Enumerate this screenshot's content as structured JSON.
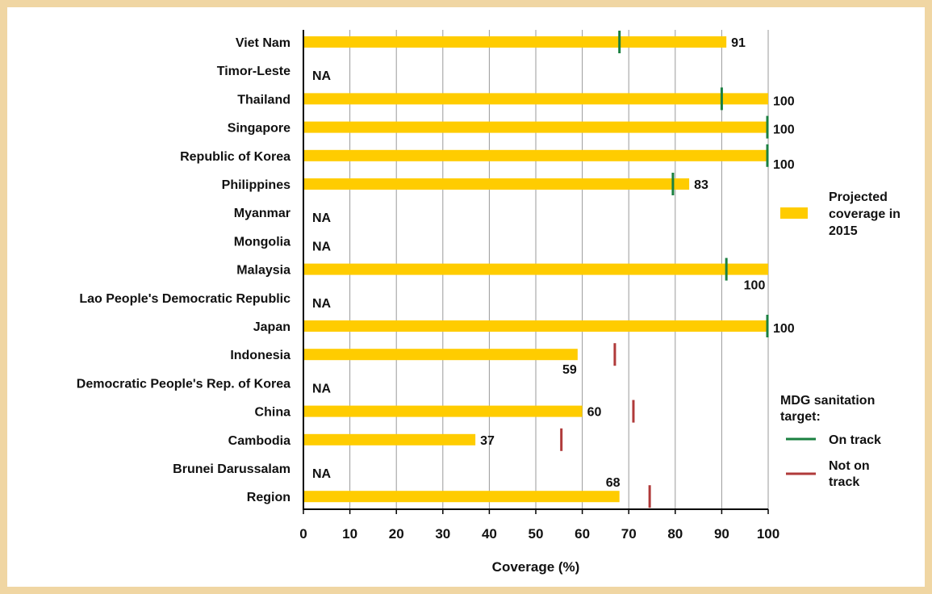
{
  "chart_data": {
    "type": "bar",
    "orientation": "horizontal",
    "xlabel": "Coverage (%)",
    "xlim": [
      0,
      100
    ],
    "xticks": [
      "0",
      "10",
      "20",
      "30",
      "40",
      "50",
      "60",
      "70",
      "80",
      "90",
      "100"
    ],
    "grid": true,
    "categories": [
      "Viet Nam",
      "Timor-Leste",
      "Thailand",
      "Singapore",
      "Republic of Korea",
      "Philippines",
      "Myanmar",
      "Mongolia",
      "Malaysia",
      "Lao People's Democratic Republic",
      "Japan",
      "Indonesia",
      "Democratic People's Rep. of Korea",
      "China",
      "Cambodia",
      "Brunei Darussalam",
      "Region"
    ],
    "series": [
      {
        "name": "Projected coverage in 2015",
        "color": "#ffcc00",
        "values": [
          91,
          null,
          100,
          100,
          100,
          83,
          null,
          null,
          100,
          null,
          100,
          59,
          null,
          60,
          37,
          null,
          68
        ],
        "labels": [
          "91",
          "NA",
          "100",
          "100",
          "100",
          "83",
          "NA",
          "NA",
          "100",
          "NA",
          "100",
          "59",
          "NA",
          "60",
          "37",
          "NA",
          "68"
        ]
      }
    ],
    "mdg_targets": [
      {
        "category": "Viet Nam",
        "value": 68,
        "status": "on-track"
      },
      {
        "category": "Thailand",
        "value": 90,
        "status": "on-track"
      },
      {
        "category": "Singapore",
        "value": 100,
        "status": "on-track"
      },
      {
        "category": "Republic of Korea",
        "value": 100,
        "status": "on-track"
      },
      {
        "category": "Philippines",
        "value": 79.5,
        "status": "on-track"
      },
      {
        "category": "Malaysia",
        "value": 91,
        "status": "on-track"
      },
      {
        "category": "Japan",
        "value": 100,
        "status": "on-track"
      },
      {
        "category": "Indonesia",
        "value": 67,
        "status": "not-on-track"
      },
      {
        "category": "China",
        "value": 71,
        "status": "not-on-track"
      },
      {
        "category": "Cambodia",
        "value": 55.5,
        "status": "not-on-track"
      },
      {
        "category": "Region",
        "value": 74.5,
        "status": "not-on-track"
      }
    ],
    "legend": {
      "placement": "right",
      "bar_label_lines": [
        "Projected",
        "coverage in",
        "2015"
      ],
      "target_title_lines": [
        "MDG sanitation",
        "target:"
      ],
      "on_track_lines": [
        "On track"
      ],
      "not_on_track_lines": [
        "Not on",
        "track"
      ]
    },
    "colors": {
      "bar": "#ffcc00",
      "on_track": "#1a8040",
      "not_on_track": "#b03a3a",
      "grid": "#9a9a9a",
      "frame_border": "#f0d6a3"
    }
  }
}
